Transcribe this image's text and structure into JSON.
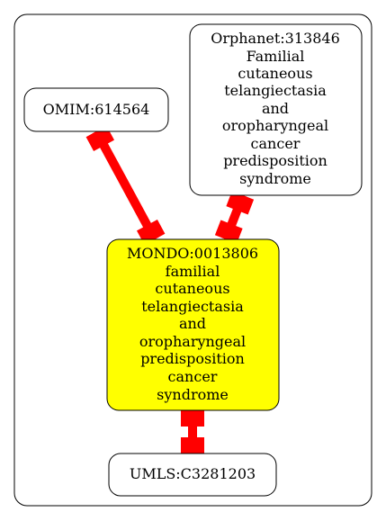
{
  "colors": {
    "edge": "#ff0000",
    "highlight_fill": "#ffff00",
    "node_fill": "#ffffff",
    "stroke": "#000000"
  },
  "nodes": {
    "omim": {
      "lines": [
        "OMIM:614564"
      ]
    },
    "orphanet": {
      "lines": [
        "Orphanet:313846",
        "Familial",
        "cutaneous",
        "telangiectasia",
        "and",
        "oropharyngeal",
        "cancer",
        "predisposition",
        "syndrome"
      ]
    },
    "mondo": {
      "lines": [
        "MONDO:0013806",
        "familial",
        "cutaneous",
        "telangiectasia",
        "and",
        "oropharyngeal",
        "predisposition",
        "cancer",
        "syndrome"
      ]
    },
    "umls": {
      "lines": [
        "UMLS:C3281203"
      ]
    }
  },
  "edges": [
    {
      "from": "omim",
      "to": "mondo"
    },
    {
      "from": "orphanet",
      "to": "mondo"
    },
    {
      "from": "mondo",
      "to": "umls"
    }
  ]
}
